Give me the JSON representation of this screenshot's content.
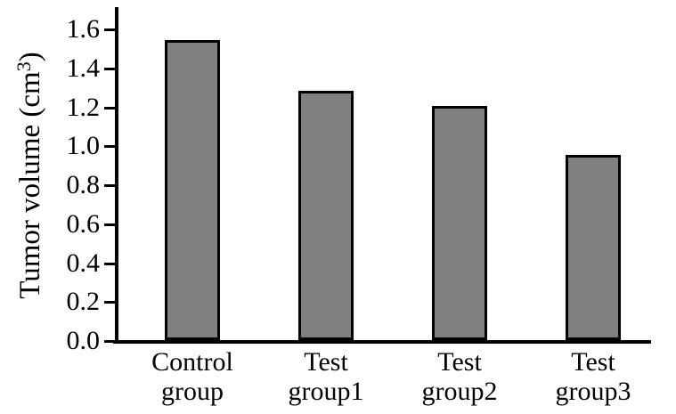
{
  "chart_data": {
    "type": "bar",
    "title": "",
    "xlabel": "",
    "ylabel": "Tumor volume (cm³)",
    "ylabel_parts": {
      "pre": "Tumor volume (cm",
      "sup": "3",
      "post": ")"
    },
    "categories": [
      [
        "Control",
        "group"
      ],
      [
        "Test",
        "group1"
      ],
      [
        "Test",
        "group2"
      ],
      [
        "Test",
        "group3"
      ]
    ],
    "values": [
      1.54,
      1.28,
      1.2,
      0.95
    ],
    "ylim": [
      0,
      1.6
    ],
    "ytick_step": 0.2,
    "yticks": [
      "0.0",
      "0.2",
      "0.4",
      "0.6",
      "0.8",
      "1.0",
      "1.2",
      "1.4",
      "1.6"
    ],
    "grid": false,
    "legend": "none",
    "bar_fill_color": "#808080",
    "bar_border_color": "#000000",
    "axis_color": "#000000",
    "background_color": "#ffffff"
  }
}
